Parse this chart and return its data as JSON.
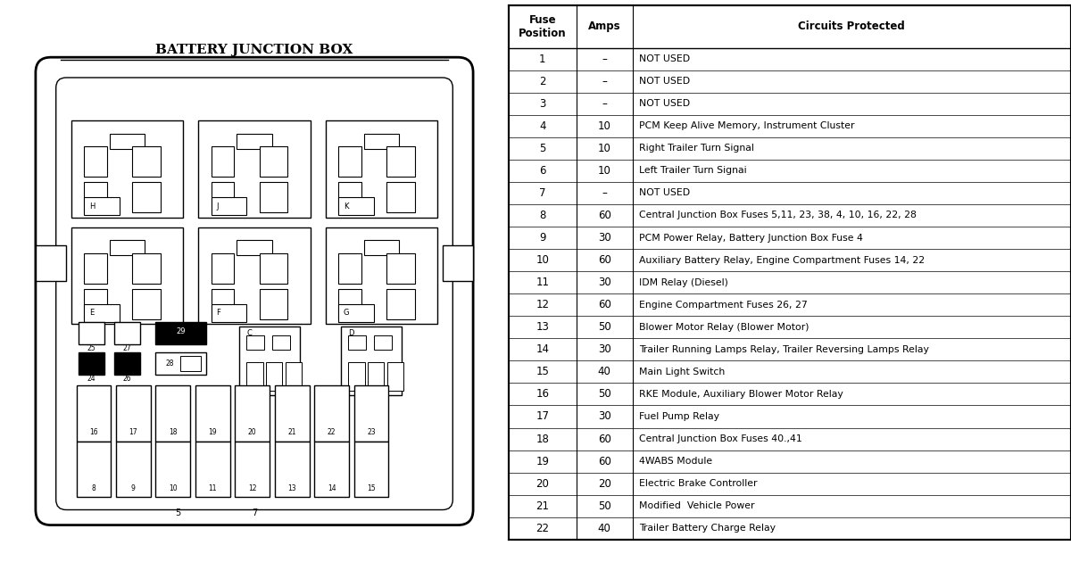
{
  "title": "BATTERY JUNCTION BOX",
  "table_headers": [
    "Fuse\nPosition",
    "Amps",
    "Circuits Protected"
  ],
  "table_data": [
    [
      "1",
      "–",
      "NOT USED"
    ],
    [
      "2",
      "–",
      "NOT USED"
    ],
    [
      "3",
      "–",
      "NOT USED"
    ],
    [
      "4",
      "10",
      "PCM Keep Alive Memory, Instrument Cluster"
    ],
    [
      "5",
      "10",
      "Right Trailer Turn Signal"
    ],
    [
      "6",
      "10",
      "Left Trailer Turn Signai"
    ],
    [
      "7",
      "–",
      "NOT USED"
    ],
    [
      "8",
      "60",
      "Central Junction Box Fuses 5,11, 23, 38, 4, 10, 16, 22, 28"
    ],
    [
      "9",
      "30",
      "PCM Power Relay, Battery Junction Box Fuse 4"
    ],
    [
      "10",
      "60",
      "Auxiliary Battery Relay, Engine Compartment Fuses 14, 22"
    ],
    [
      "11",
      "30",
      "IDM Relay (Diesel)"
    ],
    [
      "12",
      "60",
      "Engine Compartment Fuses 26, 27"
    ],
    [
      "13",
      "50",
      "Blower Motor Relay (Blower Motor)"
    ],
    [
      "14",
      "30",
      "Trailer Running Lamps Relay, Trailer Reversing Lamps Relay"
    ],
    [
      "15",
      "40",
      "Main Light Switch"
    ],
    [
      "16",
      "50",
      "RKE Module, Auxiliary Blower Motor Relay"
    ],
    [
      "17",
      "30",
      "Fuel Pump Relay"
    ],
    [
      "18",
      "60",
      "Central Junction Box Fuses 40.,41"
    ],
    [
      "19",
      "60",
      "4WABS Module"
    ],
    [
      "20",
      "20",
      "Electric Brake Controller"
    ],
    [
      "21",
      "50",
      "Modified  Vehicle Power"
    ],
    [
      "22",
      "40",
      "Trailer Battery Charge Relay"
    ]
  ],
  "bg_color": "#ffffff",
  "border_color": "#000000",
  "fuse_box_bg": "#f5f5f5"
}
